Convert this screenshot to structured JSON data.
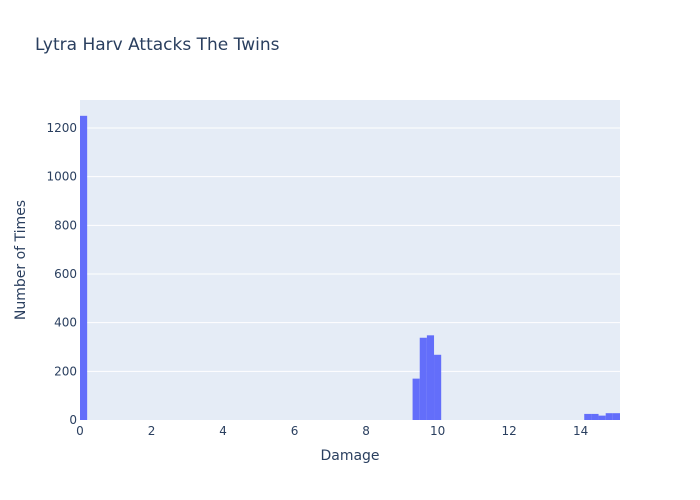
{
  "chart_data": {
    "type": "bar",
    "title": "Lytra Harv Attacks The Twins",
    "xlabel": "Damage",
    "ylabel": "Number of Times",
    "xlim": [
      0,
      15.1
    ],
    "ylim": [
      0,
      1315
    ],
    "x_ticks": [
      0,
      2,
      4,
      6,
      8,
      10,
      12,
      14
    ],
    "y_ticks": [
      0,
      200,
      400,
      600,
      800,
      1000,
      1200
    ],
    "grid": true,
    "bar_color": "#636efa",
    "plot_bg": "#e5ecf6",
    "bins": [
      {
        "x0": 0.0,
        "x1": 0.2,
        "count": 1250
      },
      {
        "x0": 9.3,
        "x1": 9.5,
        "count": 170
      },
      {
        "x0": 9.5,
        "x1": 9.7,
        "count": 338
      },
      {
        "x0": 9.7,
        "x1": 9.9,
        "count": 348
      },
      {
        "x0": 9.9,
        "x1": 10.1,
        "count": 268
      },
      {
        "x0": 14.1,
        "x1": 14.3,
        "count": 25
      },
      {
        "x0": 14.3,
        "x1": 14.5,
        "count": 25
      },
      {
        "x0": 14.5,
        "x1": 14.7,
        "count": 18
      },
      {
        "x0": 14.7,
        "x1": 14.9,
        "count": 28
      },
      {
        "x0": 14.9,
        "x1": 15.1,
        "count": 28
      }
    ]
  }
}
